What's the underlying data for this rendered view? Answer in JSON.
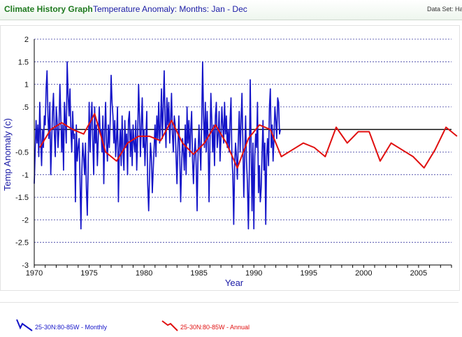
{
  "header": {
    "app_title": "Climate History Graph",
    "chart_subtitle": "Temperature Anomaly: Months: Jan - Dec",
    "data_set": "Data Set: Ha"
  },
  "colors": {
    "monthly": "#1414c8",
    "annual": "#e01010",
    "zero_line": "#000000",
    "grid": "#3a3aa0"
  },
  "legend": [
    {
      "label": "25-30N:80-85W   - Monthly",
      "color": "#1414c8"
    },
    {
      "label": "25-30N:80-85W   - Annual",
      "color": "#e01010"
    }
  ],
  "chart_data": {
    "type": "line",
    "xlabel": "Year",
    "ylabel": "Temp Anomaly (c)",
    "xlim": [
      1970,
      2008
    ],
    "ylim": [
      -3,
      2
    ],
    "x_ticks": [
      1970,
      1975,
      1980,
      1985,
      1990,
      1995,
      2000,
      2005
    ],
    "y_ticks": [
      2,
      1.5,
      1,
      0.5,
      0,
      -0.5,
      -1,
      -1.5,
      -2,
      -2.5,
      -3
    ],
    "y_tick_labels": [
      "2",
      "1.5",
      "1",
      ".5",
      "",
      "-0.5",
      "-1",
      "-1.5",
      "-2",
      "-2.5",
      "-3"
    ],
    "grid": "horizontal-dashed",
    "series": [
      {
        "name": "25-30N:80-85W   - Monthly",
        "x_start": 1970,
        "x_step": "1 month",
        "values": [
          -1.2,
          -0.5,
          0.2,
          -0.3,
          0.1,
          -0.6,
          0.6,
          -0.2,
          -0.8,
          0.0,
          -0.4,
          0.3,
          0.1,
          0.9,
          1.3,
          0.3,
          -0.2,
          0.6,
          -1.0,
          -0.3,
          0.4,
          0.8,
          -0.1,
          -0.6,
          0.5,
          0.2,
          -0.4,
          0.0,
          1.0,
          0.3,
          -0.5,
          0.1,
          -0.9,
          0.6,
          0.2,
          -0.3,
          1.5,
          0.8,
          0.3,
          0.9,
          0.0,
          -0.5,
          0.4,
          -0.2,
          -0.1,
          -1.6,
          0.1,
          -0.7,
          -0.4,
          -0.2,
          -1.1,
          -2.2,
          -0.9,
          -0.3,
          -0.6,
          -1.0,
          -0.3,
          -1.3,
          -1.9,
          -0.8,
          0.6,
          -0.5,
          0.2,
          0.6,
          -0.3,
          -1.0,
          0.5,
          -0.3,
          0.1,
          -0.8,
          -0.2,
          0.5,
          -0.1,
          0.0,
          -0.5,
          0.3,
          -1.2,
          -0.1,
          0.6,
          -0.3,
          -0.7,
          0.1,
          -0.4,
          0.2,
          1.2,
          0.6,
          0.3,
          -0.3,
          0.2,
          -0.6,
          -0.2,
          0.5,
          -1.6,
          -0.4,
          0.0,
          -0.8,
          0.3,
          -0.5,
          -0.9,
          0.2,
          -0.4,
          -0.1,
          -1.0,
          0.2,
          0.4,
          -0.6,
          0.0,
          -0.8,
          0.1,
          -0.3,
          -0.5,
          0.2,
          -0.9,
          -0.2,
          1.0,
          0.3,
          -0.6,
          0.1,
          0.7,
          -0.4,
          0.0,
          -0.8,
          -0.2,
          0.4,
          -1.2,
          -1.8,
          -1.0,
          -0.3,
          -0.6,
          -1.4,
          -0.9,
          -0.4,
          0.1,
          -0.6,
          0.3,
          -0.2,
          0.6,
          -0.3,
          0.1,
          0.9,
          -0.2,
          0.5,
          1.3,
          0.2,
          -0.4,
          0.7,
          0.1,
          0.6,
          -0.3,
          0.2,
          0.8,
          -0.1,
          -0.5,
          0.3,
          0.1,
          -0.6,
          -1.2,
          -0.4,
          0.3,
          -0.6,
          -1.6,
          -0.8,
          -0.2,
          -0.5,
          -0.9,
          0.1,
          -1.0,
          0.5,
          -0.3,
          0.2,
          -0.6,
          0.0,
          0.4,
          -0.7,
          -1.2,
          -0.5,
          -0.2,
          -0.8,
          -1.8,
          -0.6,
          0.1,
          -0.4,
          -0.9,
          0.2,
          1.5,
          0.3,
          -0.4,
          0.6,
          -0.5,
          0.4,
          -0.2,
          -1.6,
          -0.3,
          0.8,
          0.2,
          -0.5,
          0.1,
          -0.8,
          0.3,
          0.6,
          -0.4,
          -0.1,
          0.4,
          -0.7,
          -0.2,
          0.5,
          0.1,
          -0.3,
          0.6,
          -0.1,
          0.3,
          -0.4,
          0.0,
          -0.5,
          0.2,
          0.7,
          -0.6,
          -1.0,
          -2.1,
          -0.8,
          -0.3,
          -0.6,
          -1.1,
          -0.2,
          0.4,
          -0.5,
          0.2,
          0.8,
          -0.3,
          -1.5,
          -0.6,
          0.3,
          -0.7,
          -1.2,
          -2.2,
          -0.9,
          1.1,
          -0.4,
          -1.8,
          -0.3,
          -2.2,
          -0.6,
          -0.1,
          -0.4,
          0.6,
          -1.4,
          -0.8,
          -1.6,
          -1.3,
          -0.5,
          0.2,
          -0.9,
          -0.3,
          -2.1,
          -0.6,
          -0.2,
          -0.8,
          0.5,
          0.9,
          -0.4,
          0.1,
          -0.7,
          -0.2,
          0.5,
          0.2,
          -0.2,
          0.7,
          0.6,
          -0.1,
          0.0
        ]
      },
      {
        "name": "25-30N:80-85W   - Annual",
        "x": [
          1970,
          1971,
          1972,
          1973,
          1974,
          1975,
          1976,
          1977,
          1978,
          1979,
          1980,
          1981,
          1982,
          1983,
          1984,
          1985,
          1986,
          1987,
          1988,
          1989,
          1990,
          1991,
          1992,
          1993,
          1994,
          1995,
          1996,
          1997,
          1998,
          1999,
          2000,
          2001,
          2002,
          2003,
          2004,
          2005,
          2006,
          2007,
          2008
        ],
        "values": [
          -0.4,
          0.0,
          0.15,
          0.0,
          -0.1,
          0.35,
          -0.5,
          -0.7,
          -0.3,
          -0.15,
          -0.15,
          -0.25,
          0.2,
          -0.3,
          -0.55,
          -0.3,
          0.1,
          -0.3,
          -0.85,
          -0.2,
          0.1,
          0.0,
          -0.6,
          -0.45,
          -0.3,
          -0.4,
          -0.6,
          0.05,
          -0.3,
          -0.05,
          -0.05,
          -0.7,
          -0.3,
          -0.45,
          -0.6,
          -0.85,
          -0.45,
          0.05,
          -0.15
        ]
      }
    ]
  }
}
